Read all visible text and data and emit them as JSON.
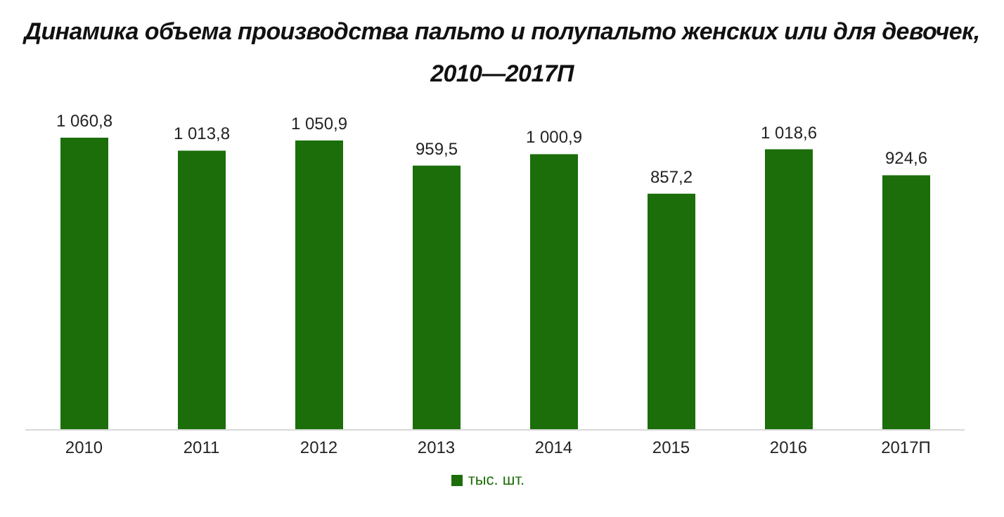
{
  "chart_data": {
    "type": "bar",
    "title": "Динамика объема производства пальто и полупальто женских или для девочек,\n2010—2017П",
    "categories": [
      "2010",
      "2011",
      "2012",
      "2013",
      "2014",
      "2015",
      "2016",
      "2017П"
    ],
    "series": [
      {
        "name": "тыс. шт.",
        "color": "#1b6e0a",
        "values": [
          1060.8,
          1013.8,
          1050.9,
          959.5,
          1000.9,
          857.2,
          1018.6,
          924.6
        ],
        "value_labels": [
          "1 060,8",
          "1 013,8",
          "1 050,9",
          "959,5",
          "1 000,9",
          "857,2",
          "1 018,6",
          "924,6"
        ]
      }
    ],
    "legend": "bottom",
    "grid": false
  }
}
